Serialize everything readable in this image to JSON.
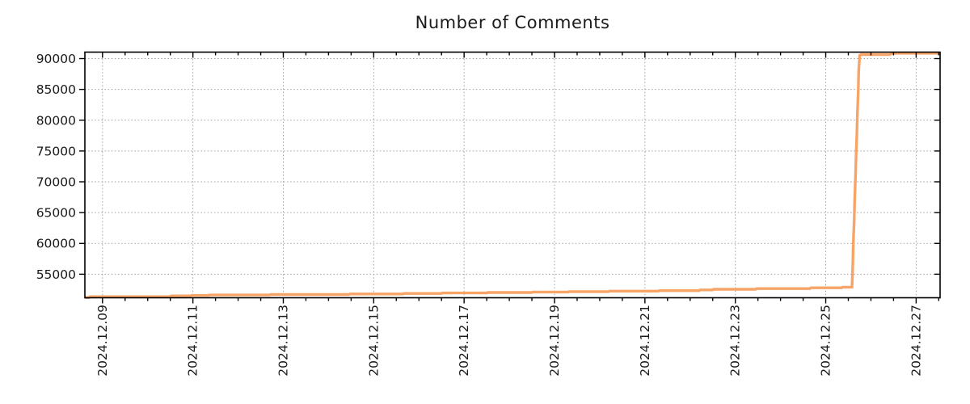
{
  "chart_data": {
    "type": "line",
    "title": "Number of Comments",
    "legend_position": "none",
    "grid": {
      "visible": true,
      "style": "dotted",
      "color": "#a0a0a0"
    },
    "frame_color": "#000000",
    "text_color": "#1a1a1a",
    "background": "#ffffff",
    "x_axis": {
      "label": "",
      "tick_labels": [
        "2024.12.09",
        "2024.12.11",
        "2024.12.13",
        "2024.12.15",
        "2024.12.17",
        "2024.12.19",
        "2024.12.21",
        "2024.12.23",
        "2024.12.25",
        "2024.12.27"
      ],
      "tick_days": [
        0,
        2,
        4,
        6,
        8,
        10,
        12,
        14,
        16,
        18
      ],
      "minor_tick_interval_days": 0.5,
      "range_days": [
        -0.39,
        18.53
      ]
    },
    "y_axis": {
      "label": "",
      "ticks": [
        55000,
        60000,
        65000,
        70000,
        75000,
        80000,
        85000,
        90000
      ],
      "range": [
        51180,
        91050
      ]
    },
    "series": [
      {
        "name": "Number of Comments",
        "color": "#F7A468",
        "line_width": 3.4,
        "points": [
          [
            -0.39,
            51200
          ],
          [
            -0.3,
            51200
          ],
          [
            -0.28,
            51350
          ],
          [
            1.5,
            51350
          ],
          [
            1.52,
            51480
          ],
          [
            1.95,
            51480
          ],
          [
            1.97,
            51560
          ],
          [
            2.35,
            51560
          ],
          [
            2.37,
            51620
          ],
          [
            3.7,
            51620
          ],
          [
            3.72,
            51700
          ],
          [
            5.45,
            51700
          ],
          [
            5.47,
            51800
          ],
          [
            6.65,
            51800
          ],
          [
            6.67,
            51880
          ],
          [
            7.5,
            51880
          ],
          [
            7.52,
            51950
          ],
          [
            8.5,
            51950
          ],
          [
            8.52,
            52030
          ],
          [
            9.5,
            52030
          ],
          [
            9.52,
            52110
          ],
          [
            10.3,
            52110
          ],
          [
            10.32,
            52180
          ],
          [
            11.2,
            52180
          ],
          [
            11.22,
            52250
          ],
          [
            12.3,
            52250
          ],
          [
            12.32,
            52330
          ],
          [
            13.2,
            52330
          ],
          [
            13.22,
            52450
          ],
          [
            13.5,
            52450
          ],
          [
            13.52,
            52560
          ],
          [
            14.45,
            52560
          ],
          [
            14.47,
            52660
          ],
          [
            15.65,
            52660
          ],
          [
            15.67,
            52790
          ],
          [
            16.35,
            52790
          ],
          [
            16.37,
            52900
          ],
          [
            16.58,
            52900
          ],
          [
            16.59,
            54500
          ],
          [
            16.6,
            57000
          ],
          [
            16.61,
            60000
          ],
          [
            16.63,
            64000
          ],
          [
            16.64,
            67000
          ],
          [
            16.66,
            71000
          ],
          [
            16.67,
            74000
          ],
          [
            16.69,
            78000
          ],
          [
            16.7,
            81000
          ],
          [
            16.72,
            85000
          ],
          [
            16.73,
            88000
          ],
          [
            16.75,
            90500
          ],
          [
            16.78,
            90650
          ],
          [
            17.42,
            90650
          ],
          [
            17.46,
            90860
          ],
          [
            18.53,
            90860
          ]
        ]
      }
    ]
  }
}
